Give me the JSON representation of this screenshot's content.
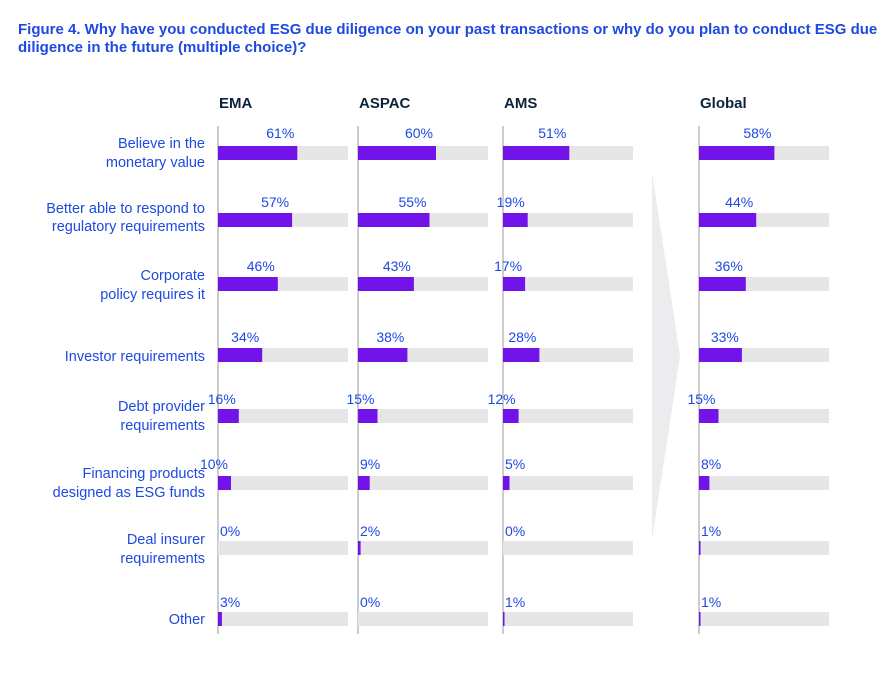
{
  "title": "Figure 4. Why have you conducted ESG due diligence on your past transactions or why do you plan to conduct ESG due diligence in the future (multiple choice)?",
  "colors": {
    "title": "#1e49e2",
    "bar": "#7213ea",
    "track": "#e6e6e8",
    "text": "#1e49e2",
    "region": "#0c233c",
    "divider": "#9a9a9a",
    "arrow": "#ececee"
  },
  "chart_data": {
    "type": "bar",
    "orientation": "horizontal",
    "panels": [
      "EMA",
      "ASPAC",
      "AMS",
      "Global"
    ],
    "categories": [
      [
        "Believe in the",
        "monetary value"
      ],
      [
        "Better able to respond to",
        "regulatory requirements"
      ],
      [
        "Corporate",
        "policy requires it"
      ],
      [
        "Investor requirements"
      ],
      [
        "Debt provider",
        "requirements"
      ],
      [
        "Financing products",
        "designed as ESG funds"
      ],
      [
        "Deal insurer",
        "requirements"
      ],
      [
        "Other"
      ]
    ],
    "series": [
      {
        "name": "EMA",
        "values": [
          61,
          57,
          46,
          34,
          16,
          10,
          0,
          3
        ]
      },
      {
        "name": "ASPAC",
        "values": [
          60,
          55,
          43,
          38,
          15,
          9,
          2,
          0
        ]
      },
      {
        "name": "AMS",
        "values": [
          51,
          19,
          17,
          28,
          12,
          5,
          0,
          1
        ]
      },
      {
        "name": "Global",
        "values": [
          58,
          44,
          36,
          33,
          15,
          8,
          1,
          1
        ]
      }
    ],
    "labels": [
      [
        "61%",
        "57%",
        "46%",
        "34%",
        "16%",
        "10%",
        "0%",
        "3%"
      ],
      [
        "60%",
        "55%",
        "43%",
        "38%",
        "15%",
        "9%",
        "2%",
        "0%"
      ],
      [
        "51%",
        "19%",
        "17%",
        "28%",
        "12%",
        "5%",
        "0%",
        "1%"
      ],
      [
        "58%",
        "44%",
        "36%",
        "33%",
        "15%",
        "8%",
        "1%",
        "1%"
      ]
    ],
    "xlim": [
      0,
      100
    ]
  }
}
